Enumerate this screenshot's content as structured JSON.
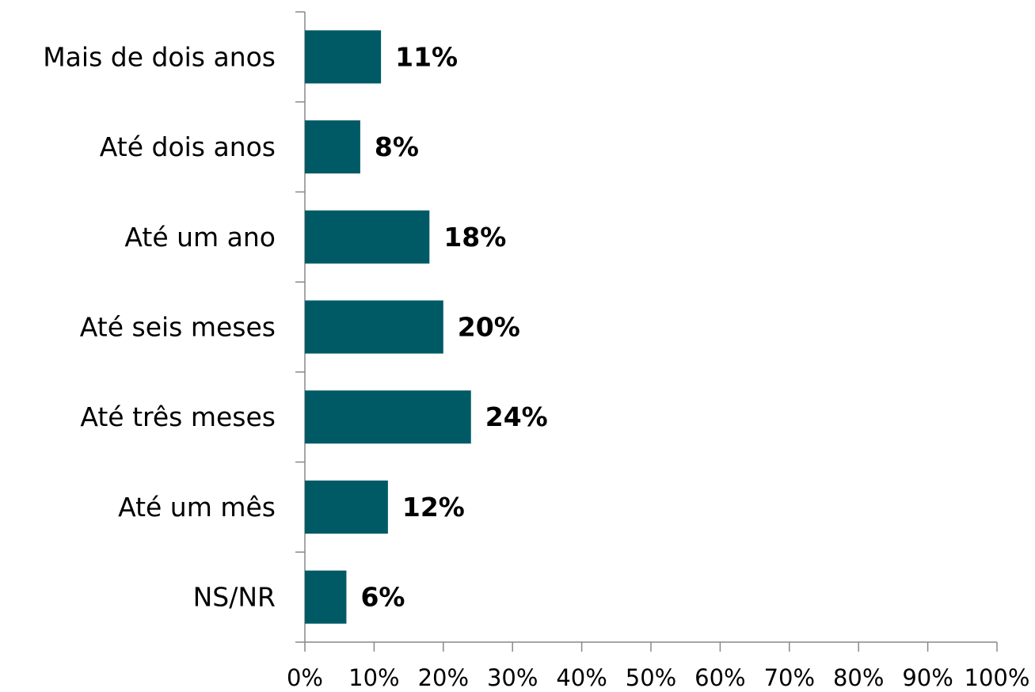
{
  "chart_data": {
    "type": "hbar",
    "categories": [
      "Mais de dois anos",
      "Até dois anos",
      "Até um ano",
      "Até seis meses",
      "Até três meses",
      "Até um mês",
      "NS/NR"
    ],
    "values": [
      11,
      8,
      18,
      20,
      24,
      12,
      6
    ],
    "value_labels": [
      "11%",
      "8%",
      "18%",
      "20%",
      "24%",
      "12%",
      "6%"
    ],
    "color": "#005a66",
    "xlim": [
      0,
      100
    ],
    "xticks": [
      {
        "value": 0,
        "label": "0%"
      },
      {
        "value": 10,
        "label": "10%"
      },
      {
        "value": 20,
        "label": "20%"
      },
      {
        "value": 30,
        "label": "30%"
      },
      {
        "value": 40,
        "label": "40%"
      },
      {
        "value": 50,
        "label": "50%"
      },
      {
        "value": 60,
        "label": "60%"
      },
      {
        "value": 70,
        "label": "70%"
      },
      {
        "value": 80,
        "label": "80%"
      },
      {
        "value": 90,
        "label": "90%"
      },
      {
        "value": 100,
        "label": "100%"
      }
    ],
    "grid": false
  }
}
